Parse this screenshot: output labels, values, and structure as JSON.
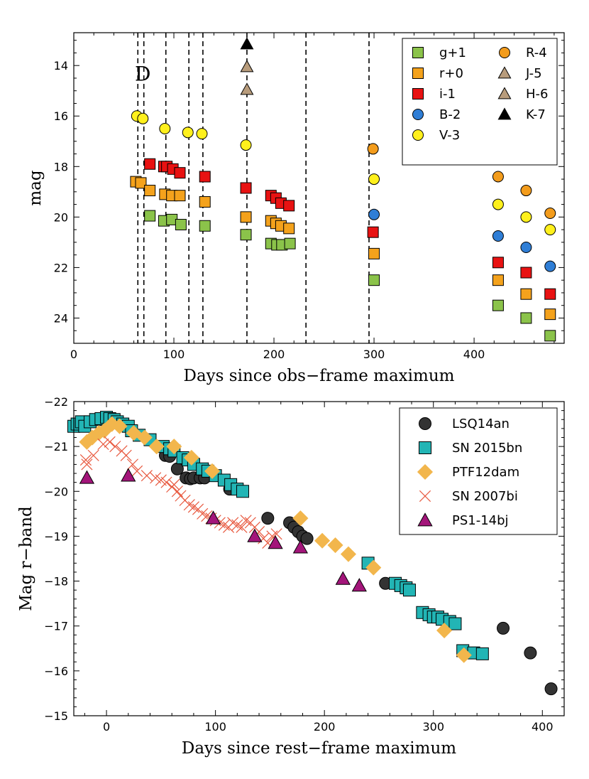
{
  "chart_data": [
    {
      "type": "scatter",
      "xlabel": "Days since obs−frame maximum",
      "ylabel": "mag",
      "xlim": [
        0,
        490
      ],
      "ylim": [
        25,
        12.7
      ],
      "y_inverted": true,
      "xticks": [
        0,
        100,
        200,
        300,
        400
      ],
      "yticks": [
        14,
        16,
        18,
        20,
        22,
        24
      ],
      "annotation": "D",
      "spectral_epochs": [
        64,
        70,
        92,
        115,
        129,
        173,
        232,
        295
      ],
      "legend": {
        "position": "top-right",
        "columns": 2
      },
      "series": [
        {
          "name": "g+1",
          "marker": "square",
          "color": "#8bc34a",
          "points": [
            [
              76,
              19.95
            ],
            [
              90,
              20.15
            ],
            [
              98,
              20.1
            ],
            [
              107,
              20.3
            ],
            [
              131,
              20.35
            ],
            [
              172,
              20.7
            ],
            [
              197,
              21.05
            ],
            [
              203,
              21.1
            ],
            [
              208,
              21.1
            ],
            [
              216,
              21.05
            ],
            [
              300,
              22.5
            ],
            [
              424,
              23.5
            ],
            [
              452,
              24.0
            ],
            [
              476,
              24.7
            ]
          ]
        },
        {
          "name": "r+0",
          "marker": "square",
          "color": "#f4a21c",
          "points": [
            [
              62,
              18.6
            ],
            [
              67,
              18.65
            ],
            [
              76,
              18.95
            ],
            [
              91,
              19.1
            ],
            [
              98,
              19.15
            ],
            [
              106,
              19.15
            ],
            [
              131,
              19.4
            ],
            [
              172,
              20.0
            ],
            [
              197,
              20.15
            ],
            [
              202,
              20.25
            ],
            [
              207,
              20.35
            ],
            [
              215,
              20.45
            ],
            [
              300,
              21.45
            ],
            [
              424,
              22.5
            ],
            [
              452,
              23.05
            ],
            [
              476,
              23.85
            ]
          ]
        },
        {
          "name": "i-1",
          "marker": "square",
          "color": "#e81212",
          "points": [
            [
              76,
              17.9
            ],
            [
              90,
              18.0
            ],
            [
              93,
              18.0
            ],
            [
              99,
              18.1
            ],
            [
              106,
              18.25
            ],
            [
              131,
              18.4
            ],
            [
              172,
              18.85
            ],
            [
              197,
              19.15
            ],
            [
              202,
              19.25
            ],
            [
              207,
              19.45
            ],
            [
              215,
              19.55
            ],
            [
              299,
              20.6
            ],
            [
              424,
              21.8
            ],
            [
              452,
              22.2
            ],
            [
              476,
              23.05
            ]
          ]
        },
        {
          "name": "B-2",
          "marker": "circle",
          "color": "#2f7ed6",
          "points": [
            [
              300,
              19.9
            ],
            [
              424,
              20.75
            ],
            [
              452,
              21.2
            ],
            [
              476,
              21.95
            ]
          ]
        },
        {
          "name": "V-3",
          "marker": "circle",
          "color": "#fff01c",
          "points": [
            [
              63,
              16.0
            ],
            [
              69,
              16.1
            ],
            [
              91,
              16.5
            ],
            [
              114,
              16.65
            ],
            [
              128,
              16.7
            ],
            [
              172,
              17.15
            ],
            [
              300,
              18.5
            ],
            [
              424,
              19.5
            ],
            [
              452,
              20.0
            ],
            [
              476,
              20.5
            ]
          ]
        },
        {
          "name": "R-4",
          "marker": "circle",
          "color": "#f39c1c",
          "points": [
            [
              299,
              17.3
            ],
            [
              424,
              18.4
            ],
            [
              452,
              18.95
            ],
            [
              476,
              19.85
            ]
          ]
        },
        {
          "name": "J-5",
          "marker": "triangle",
          "color": "#b89c7c",
          "points": [
            [
              173,
              14.05
            ]
          ]
        },
        {
          "name": "H-6",
          "marker": "triangle",
          "color": "#b89c7c",
          "points": [
            [
              173,
              14.95
            ]
          ]
        },
        {
          "name": "K-7",
          "marker": "triangle",
          "color": "#000000",
          "points": [
            [
              173,
              13.15
            ]
          ]
        }
      ]
    },
    {
      "type": "scatter",
      "xlabel": "Days since rest−frame maximum",
      "ylabel": "Mag r−band",
      "xlim": [
        -30,
        420
      ],
      "ylim": [
        -15,
        -22
      ],
      "y_inverted": true,
      "xticks": [
        0,
        100,
        200,
        300,
        400
      ],
      "yticks": [
        -15,
        -16,
        -17,
        -18,
        -19,
        -20,
        -21,
        -22
      ],
      "ytick_labels": [
        "−15",
        "−16",
        "−17",
        "−18",
        "−19",
        "−20",
        "−21",
        "−22"
      ],
      "legend": {
        "position": "top-right",
        "columns": 1
      },
      "series": [
        {
          "name": "LSQ14an",
          "marker": "circle",
          "color": "#333333",
          "points": [
            [
              54,
              -20.8
            ],
            [
              58,
              -20.78
            ],
            [
              65,
              -20.5
            ],
            [
              73,
              -20.3
            ],
            [
              77,
              -20.28
            ],
            [
              80,
              -20.3
            ],
            [
              86,
              -20.3
            ],
            [
              90,
              -20.3
            ],
            [
              113,
              -20.05
            ],
            [
              148,
              -19.4
            ],
            [
              168,
              -19.3
            ],
            [
              172,
              -19.2
            ],
            [
              176,
              -19.1
            ],
            [
              180,
              -19.0
            ],
            [
              184,
              -18.95
            ],
            [
              256,
              -17.95
            ],
            [
              364,
              -16.95
            ],
            [
              389,
              -16.4
            ],
            [
              408,
              -15.6
            ]
          ]
        },
        {
          "name": "SN 2015bn",
          "marker": "square",
          "color": "#22b5b5",
          "points": [
            [
              -30,
              -21.45
            ],
            [
              -27,
              -21.5
            ],
            [
              -23,
              -21.55
            ],
            [
              -20,
              -21.45
            ],
            [
              -15,
              -21.55
            ],
            [
              -10,
              -21.6
            ],
            [
              -5,
              -21.62
            ],
            [
              0,
              -21.65
            ],
            [
              3,
              -21.62
            ],
            [
              7,
              -21.6
            ],
            [
              10,
              -21.55
            ],
            [
              15,
              -21.5
            ],
            [
              20,
              -21.45
            ],
            [
              23,
              -21.35
            ],
            [
              30,
              -21.25
            ],
            [
              40,
              -21.15
            ],
            [
              52,
              -21.0
            ],
            [
              58,
              -20.95
            ],
            [
              62,
              -20.9
            ],
            [
              70,
              -20.75
            ],
            [
              75,
              -20.7
            ],
            [
              80,
              -20.6
            ],
            [
              88,
              -20.5
            ],
            [
              93,
              -20.45
            ],
            [
              100,
              -20.35
            ],
            [
              108,
              -20.25
            ],
            [
              114,
              -20.15
            ],
            [
              120,
              -20.05
            ],
            [
              125,
              -20.0
            ],
            [
              240,
              -18.4
            ],
            [
              265,
              -17.95
            ],
            [
              270,
              -17.9
            ],
            [
              275,
              -17.85
            ],
            [
              278,
              -17.8
            ],
            [
              290,
              -17.3
            ],
            [
              296,
              -17.25
            ],
            [
              300,
              -17.2
            ],
            [
              304,
              -17.2
            ],
            [
              308,
              -17.15
            ],
            [
              315,
              -17.1
            ],
            [
              320,
              -17.05
            ],
            [
              327,
              -16.45
            ],
            [
              337,
              -16.4
            ],
            [
              345,
              -16.38
            ]
          ]
        },
        {
          "name": "PTF12dam",
          "marker": "diamond",
          "color": "#f2b64c",
          "points": [
            [
              -18,
              -21.1
            ],
            [
              -13,
              -21.2
            ],
            [
              -7,
              -21.3
            ],
            [
              -2,
              -21.35
            ],
            [
              5,
              -21.5
            ],
            [
              12,
              -21.45
            ],
            [
              25,
              -21.3
            ],
            [
              35,
              -21.2
            ],
            [
              46,
              -21.0
            ],
            [
              62,
              -21.0
            ],
            [
              78,
              -20.75
            ],
            [
              97,
              -20.45
            ],
            [
              178,
              -19.4
            ],
            [
              198,
              -18.9
            ],
            [
              210,
              -18.8
            ],
            [
              222,
              -18.6
            ],
            [
              245,
              -18.3
            ],
            [
              310,
              -16.9
            ],
            [
              328,
              -16.35
            ]
          ]
        },
        {
          "name": "SN 2007bi",
          "marker": "x",
          "color": "#e8593f",
          "points": [
            [
              -19,
              -20.7
            ],
            [
              -18,
              -20.6
            ],
            [
              -12,
              -20.8
            ],
            [
              -3,
              -21.05
            ],
            [
              3,
              -21.1
            ],
            [
              8,
              -21.0
            ],
            [
              14,
              -20.9
            ],
            [
              18,
              -20.8
            ],
            [
              24,
              -20.6
            ],
            [
              28,
              -20.45
            ],
            [
              37,
              -20.35
            ],
            [
              45,
              -20.3
            ],
            [
              50,
              -20.25
            ],
            [
              55,
              -20.2
            ],
            [
              60,
              -20.1
            ],
            [
              62,
              -20.15
            ],
            [
              65,
              -20.0
            ],
            [
              68,
              -19.9
            ],
            [
              72,
              -19.8
            ],
            [
              76,
              -19.7
            ],
            [
              80,
              -19.65
            ],
            [
              84,
              -19.6
            ],
            [
              88,
              -19.5
            ],
            [
              92,
              -19.45
            ],
            [
              96,
              -19.4
            ],
            [
              100,
              -19.35
            ],
            [
              104,
              -19.3
            ],
            [
              108,
              -19.25
            ],
            [
              112,
              -19.2
            ],
            [
              116,
              -19.3
            ],
            [
              120,
              -19.25
            ],
            [
              124,
              -19.2
            ],
            [
              128,
              -19.35
            ],
            [
              132,
              -19.3
            ],
            [
              136,
              -19.2
            ],
            [
              140,
              -19.1
            ],
            [
              144,
              -18.95
            ],
            [
              148,
              -18.85
            ],
            [
              152,
              -19.0
            ],
            [
              156,
              -19.05
            ]
          ]
        },
        {
          "name": "PS1-14bj",
          "marker": "triangle",
          "color": "#a3157a",
          "points": [
            [
              -18,
              -20.3
            ],
            [
              20,
              -20.35
            ],
            [
              98,
              -19.4
            ],
            [
              136,
              -19.0
            ],
            [
              155,
              -18.85
            ],
            [
              178,
              -18.75
            ],
            [
              217,
              -18.05
            ],
            [
              232,
              -17.9
            ]
          ]
        }
      ]
    }
  ]
}
